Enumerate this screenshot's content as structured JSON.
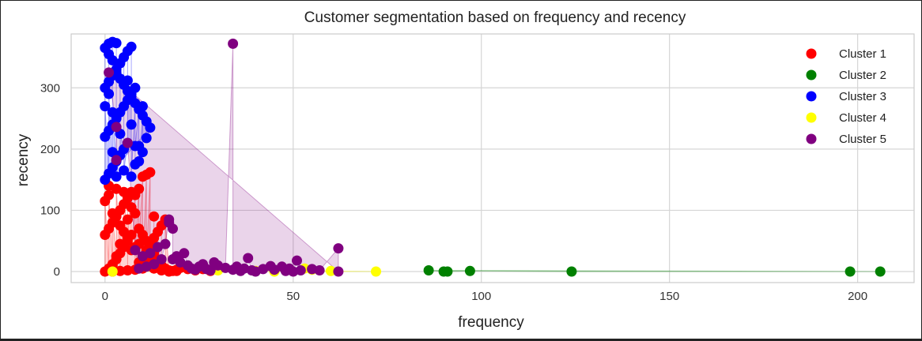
{
  "chart_data": {
    "type": "scatter",
    "title": "Customer segmentation based on frequency and recency",
    "xlabel": "frequency",
    "ylabel": "recency",
    "xlim": [
      -9,
      215
    ],
    "ylim": [
      -18,
      388
    ],
    "xticks": [
      0,
      50,
      100,
      150,
      200
    ],
    "yticks": [
      0,
      100,
      200,
      300
    ],
    "grid": true,
    "legend_position": "top-right",
    "series": [
      {
        "name": "Cluster 1",
        "color": "#ff0000",
        "marker": "circle",
        "points": [
          [
            0,
            0
          ],
          [
            1,
            5
          ],
          [
            2,
            12
          ],
          [
            3,
            20
          ],
          [
            4,
            30
          ],
          [
            5,
            40
          ],
          [
            6,
            50
          ],
          [
            0,
            60
          ],
          [
            1,
            70
          ],
          [
            2,
            80
          ],
          [
            3,
            90
          ],
          [
            4,
            100
          ],
          [
            5,
            110
          ],
          [
            6,
            120
          ],
          [
            7,
            130
          ],
          [
            1,
            140
          ],
          [
            2,
            10
          ],
          [
            3,
            25
          ],
          [
            4,
            45
          ],
          [
            5,
            65
          ],
          [
            6,
            85
          ],
          [
            7,
            105
          ],
          [
            8,
            125
          ],
          [
            9,
            135
          ],
          [
            10,
            155
          ],
          [
            11,
            158
          ],
          [
            12,
            162
          ],
          [
            8,
            95
          ],
          [
            9,
            70
          ],
          [
            10,
            60
          ],
          [
            11,
            50
          ],
          [
            12,
            40
          ],
          [
            13,
            30
          ],
          [
            14,
            20
          ],
          [
            15,
            10
          ],
          [
            16,
            5
          ],
          [
            17,
            2
          ],
          [
            18,
            1
          ],
          [
            19,
            3
          ],
          [
            20,
            6
          ],
          [
            21,
            8
          ],
          [
            22,
            4
          ],
          [
            9,
            15
          ],
          [
            10,
            25
          ],
          [
            11,
            35
          ],
          [
            12,
            45
          ],
          [
            13,
            55
          ],
          [
            14,
            65
          ],
          [
            15,
            75
          ],
          [
            16,
            85
          ],
          [
            13,
            90
          ],
          [
            14,
            10
          ],
          [
            12,
            20
          ],
          [
            10,
            5
          ],
          [
            8,
            3
          ],
          [
            6,
            2
          ],
          [
            4,
            1
          ],
          [
            2,
            0
          ],
          [
            7,
            60
          ],
          [
            8,
            40
          ],
          [
            5,
            130
          ],
          [
            3,
            135
          ],
          [
            1,
            125
          ],
          [
            0,
            115
          ],
          [
            2,
            95
          ],
          [
            4,
            75
          ],
          [
            6,
            55
          ],
          [
            7,
            35
          ],
          [
            9,
            45
          ],
          [
            11,
            15
          ],
          [
            13,
            5
          ],
          [
            15,
            2
          ],
          [
            17,
            0
          ],
          [
            19,
            1
          ],
          [
            24,
            2
          ],
          [
            26,
            4
          ],
          [
            28,
            1
          ],
          [
            30,
            3
          ]
        ]
      },
      {
        "name": "Cluster 2",
        "color": "#008000",
        "marker": "circle",
        "points": [
          [
            86,
            2
          ],
          [
            90,
            0
          ],
          [
            91,
            0
          ],
          [
            97,
            1
          ],
          [
            124,
            0
          ],
          [
            198,
            0
          ],
          [
            206,
            0
          ]
        ]
      },
      {
        "name": "Cluster 3",
        "color": "#0000ff",
        "marker": "circle",
        "points": [
          [
            0,
            150
          ],
          [
            1,
            160
          ],
          [
            2,
            170
          ],
          [
            3,
            180
          ],
          [
            4,
            190
          ],
          [
            5,
            200
          ],
          [
            6,
            210
          ],
          [
            0,
            220
          ],
          [
            1,
            230
          ],
          [
            2,
            240
          ],
          [
            3,
            250
          ],
          [
            4,
            260
          ],
          [
            5,
            270
          ],
          [
            6,
            280
          ],
          [
            7,
            290
          ],
          [
            0,
            300
          ],
          [
            1,
            310
          ],
          [
            2,
            320
          ],
          [
            3,
            330
          ],
          [
            4,
            340
          ],
          [
            5,
            350
          ],
          [
            6,
            360
          ],
          [
            7,
            367
          ],
          [
            1,
            372
          ],
          [
            2,
            375
          ],
          [
            3,
            373
          ],
          [
            0,
            365
          ],
          [
            1,
            355
          ],
          [
            2,
            345
          ],
          [
            3,
            325
          ],
          [
            4,
            315
          ],
          [
            5,
            305
          ],
          [
            6,
            295
          ],
          [
            7,
            285
          ],
          [
            8,
            275
          ],
          [
            9,
            265
          ],
          [
            10,
            255
          ],
          [
            11,
            245
          ],
          [
            12,
            235
          ],
          [
            8,
            300
          ],
          [
            9,
            205
          ],
          [
            11,
            218
          ],
          [
            6,
            312
          ],
          [
            2,
            195
          ],
          [
            4,
            225
          ],
          [
            7,
            240
          ],
          [
            8,
            175
          ],
          [
            5,
            165
          ],
          [
            3,
            155
          ],
          [
            10,
            195
          ],
          [
            9,
            180
          ],
          [
            7,
            155
          ],
          [
            8,
            205
          ],
          [
            10,
            270
          ],
          [
            0,
            270
          ],
          [
            1,
            290
          ],
          [
            2,
            260
          ]
        ]
      },
      {
        "name": "Cluster 4",
        "color": "#ffff00",
        "marker": "circle",
        "points": [
          [
            2,
            0
          ],
          [
            53,
            5
          ],
          [
            55,
            3
          ],
          [
            60,
            1
          ],
          [
            72,
            0
          ],
          [
            30,
            2
          ],
          [
            40,
            1
          ],
          [
            45,
            0
          ]
        ]
      },
      {
        "name": "Cluster 5",
        "color": "#800080",
        "marker": "circle",
        "points": [
          [
            1,
            325
          ],
          [
            3,
            236
          ],
          [
            3,
            182
          ],
          [
            6,
            210
          ],
          [
            8,
            35
          ],
          [
            10,
            25
          ],
          [
            12,
            30
          ],
          [
            14,
            40
          ],
          [
            16,
            45
          ],
          [
            17,
            85
          ],
          [
            17,
            80
          ],
          [
            18,
            70
          ],
          [
            15,
            20
          ],
          [
            19,
            25
          ],
          [
            20,
            15
          ],
          [
            21,
            30
          ],
          [
            22,
            10
          ],
          [
            23,
            5
          ],
          [
            25,
            8
          ],
          [
            26,
            12
          ],
          [
            27,
            4
          ],
          [
            29,
            15
          ],
          [
            30,
            10
          ],
          [
            32,
            6
          ],
          [
            34,
            372
          ],
          [
            34,
            3
          ],
          [
            35,
            8
          ],
          [
            37,
            5
          ],
          [
            38,
            22
          ],
          [
            39,
            2
          ],
          [
            42,
            4
          ],
          [
            44,
            9
          ],
          [
            45,
            3
          ],
          [
            47,
            8
          ],
          [
            49,
            5
          ],
          [
            51,
            18
          ],
          [
            52,
            2
          ],
          [
            55,
            4
          ],
          [
            57,
            2
          ],
          [
            62,
            38
          ],
          [
            62,
            0
          ],
          [
            24,
            3
          ],
          [
            28,
            2
          ],
          [
            36,
            1
          ],
          [
            40,
            0
          ],
          [
            48,
            1
          ],
          [
            50,
            0
          ],
          [
            18,
            20
          ],
          [
            13,
            12
          ],
          [
            11,
            8
          ],
          [
            9,
            5
          ]
        ]
      }
    ]
  }
}
